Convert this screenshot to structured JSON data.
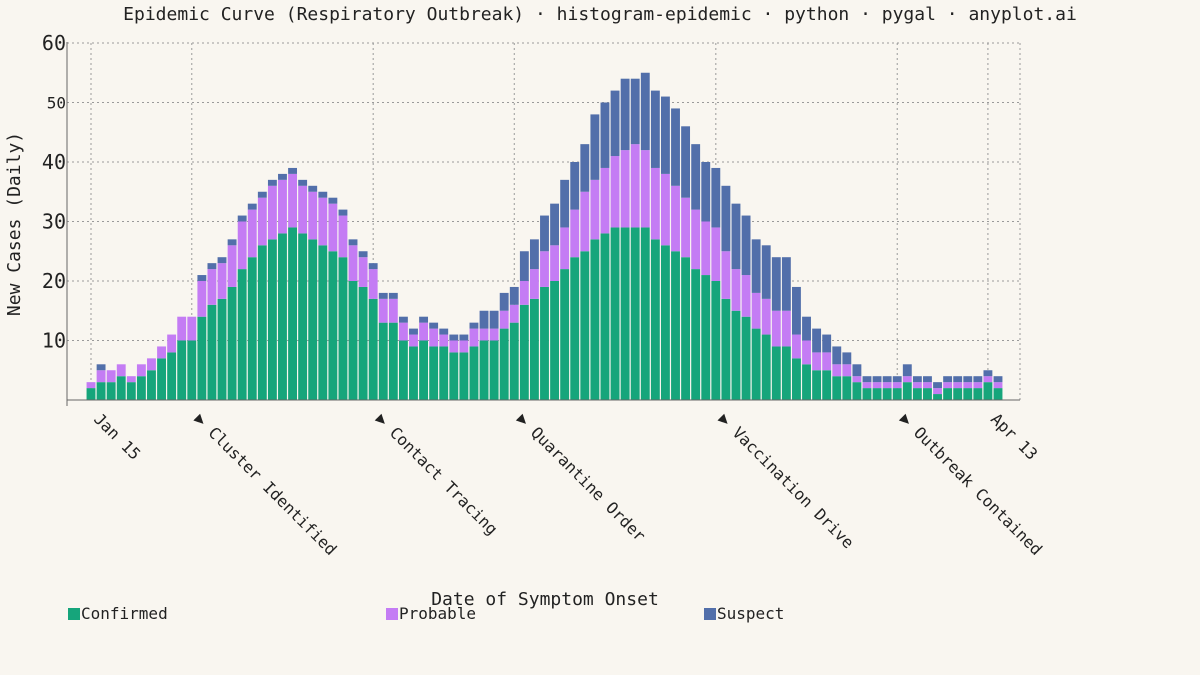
{
  "chart_data": {
    "type": "bar",
    "stacked": true,
    "title": "Epidemic Curve (Respiratory Outbreak) · histogram-epidemic · python · pygal · anyplot.ai",
    "xlabel": "Date of Symptom Onset",
    "ylabel": "New Cases (Daily)",
    "ylim": [
      0,
      60
    ],
    "y_major_ticks": [
      60,
      40,
      30,
      20,
      10
    ],
    "y_minor_ticks": [
      50
    ],
    "grid": true,
    "legend_position": "bottom",
    "x_start": "Jan 15",
    "x_end": "Apr 13",
    "x_tick_labels": [
      {
        "day": 0,
        "label": "Jan 15"
      },
      {
        "day": 10,
        "label": "▶ Cluster Identified"
      },
      {
        "day": 28,
        "label": "▶ Contact Tracing"
      },
      {
        "day": 42,
        "label": "▶ Quarantine Order"
      },
      {
        "day": 62,
        "label": "▶ Vaccination Drive"
      },
      {
        "day": 80,
        "label": "▶ Outbreak Contained"
      },
      {
        "day": 89,
        "label": "Apr 13"
      }
    ],
    "series": [
      {
        "name": "Confirmed",
        "color": "#16a57b",
        "values": [
          2,
          3,
          3,
          4,
          3,
          4,
          5,
          7,
          8,
          10,
          10,
          14,
          16,
          17,
          19,
          22,
          24,
          26,
          27,
          28,
          29,
          28,
          27,
          26,
          25,
          24,
          20,
          19,
          17,
          13,
          13,
          10,
          9,
          10,
          9,
          9,
          8,
          8,
          9,
          10,
          10,
          12,
          13,
          16,
          17,
          19,
          20,
          22,
          24,
          25,
          27,
          28,
          29,
          29,
          29,
          29,
          27,
          26,
          25,
          24,
          22,
          21,
          20,
          17,
          15,
          14,
          12,
          11,
          9,
          9,
          7,
          6,
          5,
          5,
          4,
          4,
          3,
          2,
          2,
          2,
          2,
          3,
          2,
          2,
          1,
          2,
          2,
          2,
          2,
          3,
          2
        ]
      },
      {
        "name": "Probable",
        "color": "#c47cf4",
        "values": [
          1,
          2,
          2,
          2,
          1,
          2,
          2,
          2,
          3,
          4,
          4,
          6,
          6,
          6,
          7,
          8,
          8,
          8,
          9,
          9,
          9,
          8,
          8,
          8,
          8,
          7,
          6,
          5,
          5,
          4,
          4,
          3,
          2,
          3,
          3,
          2,
          2,
          2,
          3,
          2,
          2,
          3,
          3,
          4,
          5,
          6,
          6,
          7,
          8,
          10,
          10,
          11,
          12,
          13,
          14,
          13,
          12,
          12,
          11,
          10,
          10,
          9,
          9,
          8,
          7,
          7,
          6,
          6,
          6,
          6,
          4,
          4,
          3,
          3,
          2,
          2,
          1,
          1,
          1,
          1,
          1,
          1,
          1,
          1,
          1,
          1,
          1,
          1,
          1,
          1,
          1
        ]
      },
      {
        "name": "Suspect",
        "color": "#526faa",
        "values": [
          0,
          1,
          0,
          0,
          0,
          0,
          0,
          0,
          0,
          0,
          0,
          1,
          1,
          1,
          1,
          1,
          1,
          1,
          1,
          1,
          1,
          1,
          1,
          1,
          1,
          1,
          1,
          1,
          1,
          1,
          1,
          1,
          1,
          1,
          1,
          1,
          1,
          1,
          1,
          3,
          3,
          3,
          3,
          5,
          5,
          6,
          7,
          8,
          8,
          8,
          11,
          11,
          11,
          12,
          11,
          13,
          13,
          13,
          13,
          12,
          11,
          10,
          10,
          11,
          11,
          10,
          9,
          9,
          9,
          9,
          8,
          4,
          4,
          3,
          3,
          2,
          2,
          1,
          1,
          1,
          1,
          2,
          1,
          1,
          1,
          1,
          1,
          1,
          1,
          1,
          1
        ]
      }
    ]
  }
}
